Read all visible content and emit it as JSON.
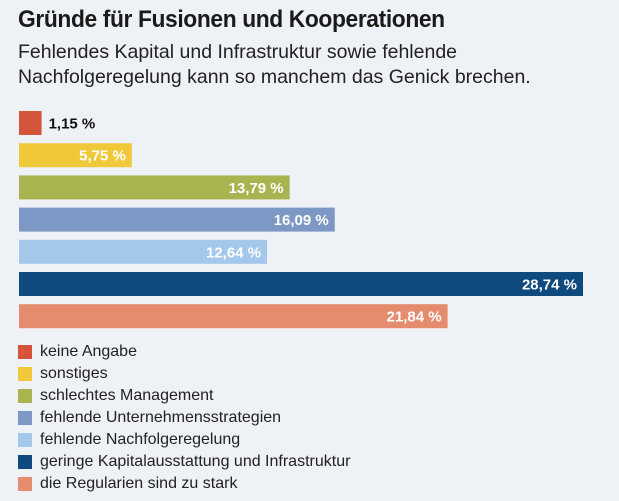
{
  "chart_data": {
    "type": "bar",
    "orientation": "horizontal",
    "title": "Gründe für Fusionen und Kooperationen",
    "subtitle": "Fehlendes Kapital und Infrastruktur sowie fehlende Nachfolgeregelung kann so manchem das Genick brechen.",
    "unit": "%",
    "xlim": [
      0,
      28.74
    ],
    "categories": [
      "keine Angabe",
      "sonstiges",
      "schlechtes Management",
      "fehlende Unternehmensstrategien",
      "fehlende Nachfolgeregelung",
      "geringe Kapitalausstattung und Infrastruktur",
      "die Regularien sind zu stark"
    ],
    "values": [
      1.15,
      5.75,
      13.79,
      16.09,
      12.64,
      28.74,
      21.84
    ],
    "value_labels": [
      "1,15 %",
      "5,75 %",
      "13,79 %",
      "16,09 %",
      "12,64 %",
      "28,74 %",
      "21,84 %"
    ],
    "colors": [
      "#d4553a",
      "#f0c93a",
      "#a8b44f",
      "#7d98c4",
      "#a3c8ec",
      "#0f4a7e",
      "#e58c6f"
    ],
    "label_colors": [
      "#111111",
      "#ffffff",
      "#ffffff",
      "#ffffff",
      "#ffffff",
      "#ffffff",
      "#ffffff"
    ],
    "legend_placement": "bottom-left"
  }
}
